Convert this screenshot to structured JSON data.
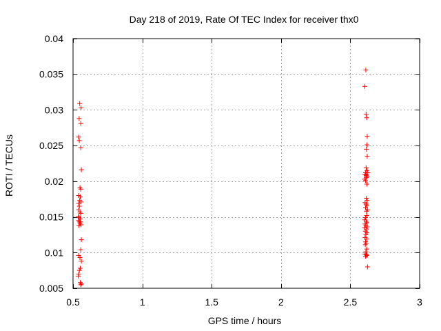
{
  "chart_data": {
    "type": "scatter",
    "title": "Day 218 of 2019, Rate Of TEC Index for receiver thx0",
    "xlabel": "GPS time / hours",
    "ylabel": "ROTI / TECUs",
    "xlim": [
      0.5,
      3.0
    ],
    "ylim": [
      0.005,
      0.04
    ],
    "xticks": [
      0.5,
      1.0,
      1.5,
      2.0,
      2.5,
      3.0
    ],
    "xtick_labels": [
      "0.5",
      "1",
      "1.5",
      "2",
      "2.5",
      "3"
    ],
    "yticks": [
      0.005,
      0.01,
      0.015,
      0.02,
      0.025,
      0.03,
      0.035,
      0.04
    ],
    "ytick_labels": [
      "0.005",
      "0.01",
      "0.015",
      "0.02",
      "0.025",
      "0.03",
      "0.035",
      "0.04"
    ],
    "grid": true,
    "marker": "+",
    "color": "#ff0000",
    "series": [
      {
        "name": "thx0",
        "points": [
          [
            0.548,
            0.0309
          ],
          [
            0.558,
            0.0303
          ],
          [
            0.544,
            0.0288
          ],
          [
            0.556,
            0.0281
          ],
          [
            0.54,
            0.0262
          ],
          [
            0.545,
            0.0257
          ],
          [
            0.556,
            0.0247
          ],
          [
            0.56,
            0.0216
          ],
          [
            0.55,
            0.0191
          ],
          [
            0.556,
            0.0189
          ],
          [
            0.54,
            0.018
          ],
          [
            0.552,
            0.0178
          ],
          [
            0.548,
            0.0173
          ],
          [
            0.558,
            0.0171
          ],
          [
            0.54,
            0.0169
          ],
          [
            0.546,
            0.0165
          ],
          [
            0.54,
            0.016
          ],
          [
            0.55,
            0.0157
          ],
          [
            0.556,
            0.0155
          ],
          [
            0.538,
            0.0151
          ],
          [
            0.544,
            0.0149
          ],
          [
            0.552,
            0.0147
          ],
          [
            0.54,
            0.0145
          ],
          [
            0.546,
            0.0143
          ],
          [
            0.55,
            0.0141
          ],
          [
            0.558,
            0.0139
          ],
          [
            0.542,
            0.0138
          ],
          [
            0.554,
            0.0143
          ],
          [
            0.56,
            0.0118
          ],
          [
            0.556,
            0.0104
          ],
          [
            0.54,
            0.0096
          ],
          [
            0.55,
            0.0093
          ],
          [
            0.56,
            0.0088
          ],
          [
            0.552,
            0.0078
          ],
          [
            0.546,
            0.0075
          ],
          [
            0.54,
            0.007
          ],
          [
            0.538,
            0.0067
          ],
          [
            0.552,
            0.0058
          ],
          [
            0.56,
            0.0056
          ],
          [
            0.556,
            0.0055
          ],
          [
            2.612,
            0.0356
          ],
          [
            2.604,
            0.0333
          ],
          [
            2.614,
            0.0294
          ],
          [
            2.618,
            0.0289
          ],
          [
            2.622,
            0.0263
          ],
          [
            2.62,
            0.0251
          ],
          [
            2.616,
            0.0245
          ],
          [
            2.622,
            0.0235
          ],
          [
            2.614,
            0.0219
          ],
          [
            2.62,
            0.0215
          ],
          [
            2.61,
            0.0212
          ],
          [
            2.618,
            0.021
          ],
          [
            2.626,
            0.0212
          ],
          [
            2.606,
            0.0209
          ],
          [
            2.614,
            0.0208
          ],
          [
            2.622,
            0.0207
          ],
          [
            2.616,
            0.0205
          ],
          [
            2.602,
            0.0203
          ],
          [
            2.61,
            0.0201
          ],
          [
            2.62,
            0.0196
          ],
          [
            2.616,
            0.0176
          ],
          [
            2.622,
            0.0173
          ],
          [
            2.606,
            0.017
          ],
          [
            2.614,
            0.0168
          ],
          [
            2.62,
            0.0166
          ],
          [
            2.61,
            0.0163
          ],
          [
            2.624,
            0.016
          ],
          [
            2.616,
            0.0158
          ],
          [
            2.618,
            0.0152
          ],
          [
            2.61,
            0.0149
          ],
          [
            2.604,
            0.0146
          ],
          [
            2.614,
            0.0144
          ],
          [
            2.62,
            0.0142
          ],
          [
            2.606,
            0.014
          ],
          [
            2.612,
            0.0138
          ],
          [
            2.622,
            0.0136
          ],
          [
            2.602,
            0.0135
          ],
          [
            2.616,
            0.0133
          ],
          [
            2.608,
            0.013
          ],
          [
            2.62,
            0.0128
          ],
          [
            2.612,
            0.0125
          ],
          [
            2.606,
            0.0121
          ],
          [
            2.618,
            0.0119
          ],
          [
            2.61,
            0.0115
          ],
          [
            2.614,
            0.0113
          ],
          [
            2.608,
            0.0111
          ],
          [
            2.618,
            0.0105
          ],
          [
            2.612,
            0.0101
          ],
          [
            2.606,
            0.0098
          ],
          [
            2.616,
            0.0097
          ],
          [
            2.62,
            0.0096
          ],
          [
            2.61,
            0.0095
          ],
          [
            2.624,
            0.008
          ]
        ]
      }
    ]
  }
}
